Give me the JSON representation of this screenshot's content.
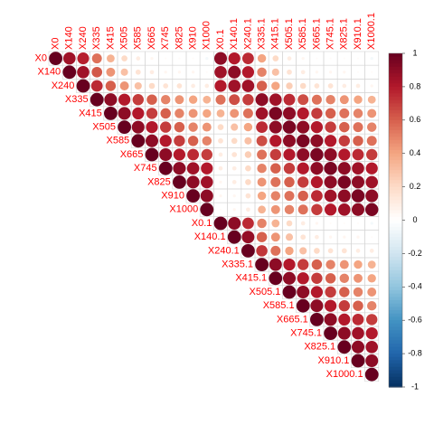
{
  "chart_data": {
    "type": "heatmap",
    "subtype": "correlation-circles-upper-triangle",
    "variables": [
      "X0",
      "X140",
      "X240",
      "X335",
      "X415",
      "X505",
      "X585",
      "X665",
      "X745",
      "X825",
      "X910",
      "X1000",
      "X0.1",
      "X140.1",
      "X240.1",
      "X335.1",
      "X415.1",
      "X505.1",
      "X585.1",
      "X665.1",
      "X745.1",
      "X825.1",
      "X910.1",
      "X1000.1"
    ],
    "group_a_size": 12,
    "diagonal_value": 1,
    "within_a": [
      [
        0.85,
        0.78,
        0.55,
        0.35,
        0.2,
        0.1,
        0.05,
        0.02,
        0.02,
        0.02,
        -0.05
      ],
      [
        0.85,
        0.62,
        0.45,
        0.3,
        0.15,
        0.1,
        0.05,
        0.05,
        0.05,
        0.02
      ],
      [
        0.75,
        0.6,
        0.45,
        0.3,
        0.2,
        0.15,
        0.15,
        0.1,
        0.1
      ],
      [
        0.9,
        0.8,
        0.7,
        0.6,
        0.5,
        0.45,
        0.4,
        0.35
      ],
      [
        0.9,
        0.8,
        0.7,
        0.6,
        0.5,
        0.45,
        0.4
      ],
      [
        0.9,
        0.8,
        0.7,
        0.6,
        0.5,
        0.45
      ],
      [
        0.9,
        0.8,
        0.7,
        0.6,
        0.5
      ],
      [
        0.9,
        0.8,
        0.75,
        0.7
      ],
      [
        0.9,
        0.85,
        0.8
      ],
      [
        0.9,
        0.85
      ],
      [
        0.9
      ]
    ],
    "within_b": [
      [
        0.9,
        0.75,
        0.5,
        0.35,
        0.2,
        0.1,
        0.05,
        0.02,
        0.02,
        0.02,
        -0.05
      ],
      [
        0.88,
        0.6,
        0.45,
        0.3,
        0.15,
        0.1,
        0.05,
        0.05,
        0.05,
        0.02
      ],
      [
        0.72,
        0.55,
        0.4,
        0.3,
        0.2,
        0.15,
        0.15,
        0.1,
        0.1
      ],
      [
        0.9,
        0.8,
        0.7,
        0.6,
        0.5,
        0.45,
        0.4,
        0.35
      ],
      [
        0.9,
        0.8,
        0.7,
        0.6,
        0.5,
        0.45,
        0.4
      ],
      [
        0.9,
        0.8,
        0.7,
        0.6,
        0.5,
        0.45
      ],
      [
        0.9,
        0.8,
        0.7,
        0.6,
        0.5
      ],
      [
        0.9,
        0.8,
        0.75,
        0.7
      ],
      [
        0.9,
        0.85,
        0.8
      ],
      [
        0.9,
        0.85
      ],
      [
        0.9
      ]
    ],
    "cross": [
      [
        0.9,
        0.8,
        0.75,
        0.4,
        0.2,
        0.1,
        0.05,
        0.02,
        0.02,
        0.02,
        0.02,
        -0.05
      ],
      [
        0.85,
        0.9,
        0.8,
        0.5,
        0.3,
        0.15,
        0.1,
        0.05,
        0.05,
        0.05,
        0.02,
        0.02
      ],
      [
        0.8,
        0.85,
        0.85,
        0.6,
        0.4,
        0.25,
        0.2,
        0.15,
        0.15,
        0.1,
        0.1,
        0.05
      ],
      [
        0.55,
        0.65,
        0.7,
        0.9,
        0.85,
        0.75,
        0.65,
        0.55,
        0.5,
        0.45,
        0.4,
        0.35
      ],
      [
        0.35,
        0.45,
        0.55,
        0.85,
        0.95,
        0.9,
        0.8,
        0.7,
        0.6,
        0.55,
        0.5,
        0.45
      ],
      [
        0.2,
        0.3,
        0.4,
        0.75,
        0.9,
        0.95,
        0.9,
        0.8,
        0.7,
        0.6,
        0.55,
        0.5
      ],
      [
        0.15,
        0.2,
        0.3,
        0.65,
        0.8,
        0.9,
        0.95,
        0.9,
        0.8,
        0.7,
        0.6,
        0.55
      ],
      [
        0.1,
        0.15,
        0.25,
        0.55,
        0.7,
        0.8,
        0.9,
        0.95,
        0.9,
        0.8,
        0.75,
        0.7
      ],
      [
        0.1,
        0.1,
        0.2,
        0.5,
        0.6,
        0.7,
        0.8,
        0.9,
        0.95,
        0.9,
        0.85,
        0.8
      ],
      [
        0.05,
        0.1,
        0.2,
        0.45,
        0.55,
        0.6,
        0.7,
        0.8,
        0.9,
        0.95,
        0.9,
        0.85
      ],
      [
        0.05,
        0.05,
        0.15,
        0.4,
        0.5,
        0.55,
        0.6,
        0.75,
        0.85,
        0.9,
        0.95,
        0.9
      ],
      [
        0.02,
        0.05,
        0.1,
        0.35,
        0.45,
        0.5,
        0.55,
        0.7,
        0.8,
        0.85,
        0.9,
        0.95
      ]
    ],
    "colorbar": {
      "range": [
        -1,
        1
      ],
      "tick_labels": [
        "1",
        "0.8",
        "0.6",
        "0.4",
        "0.2",
        "0",
        "-0.2",
        "-0.4",
        "-0.6",
        "-0.8",
        "-1"
      ],
      "colors": [
        "#67001F",
        "#B2182B",
        "#D6604D",
        "#F4A582",
        "#FDDBC7",
        "#FFFFFF",
        "#D1E5F0",
        "#92C5DE",
        "#4393C3",
        "#2166AC",
        "#053061"
      ]
    },
    "label_color": "#FF0000",
    "grid": true
  }
}
